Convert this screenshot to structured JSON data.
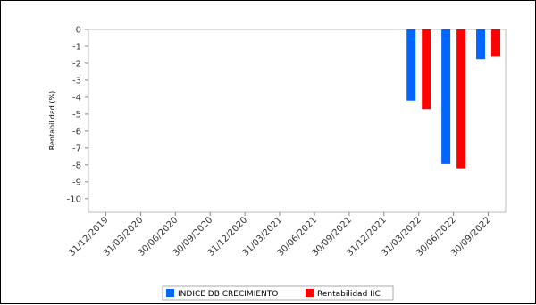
{
  "chart_data": {
    "type": "bar",
    "title": "",
    "xlabel": "",
    "ylabel": "Rentabilidad (%)",
    "categories": [
      "31/12/2019",
      "31/03/2020",
      "30/06/2020",
      "30/09/2020",
      "31/12/2020",
      "31/03/2021",
      "30/06/2021",
      "30/09/2021",
      "31/12/2021",
      "31/03/2022",
      "30/06/2022",
      "30/09/2022"
    ],
    "ylim": [
      -10.8,
      0
    ],
    "yticks": [
      0,
      -1,
      -2,
      -3,
      -4,
      -5,
      -6,
      -7,
      -8,
      -9,
      -10
    ],
    "grid": false,
    "legend_position": "bottom",
    "series": [
      {
        "name": "INDICE DB CRECIMIENTO",
        "color": "#0066ff",
        "values": [
          null,
          null,
          null,
          null,
          null,
          null,
          null,
          null,
          null,
          -4.2,
          -7.95,
          -1.75
        ]
      },
      {
        "name": "Rentabilidad IIC",
        "color": "#ff0000",
        "values": [
          null,
          null,
          null,
          null,
          null,
          null,
          null,
          null,
          null,
          -4.7,
          -8.2,
          -1.6
        ]
      }
    ]
  }
}
